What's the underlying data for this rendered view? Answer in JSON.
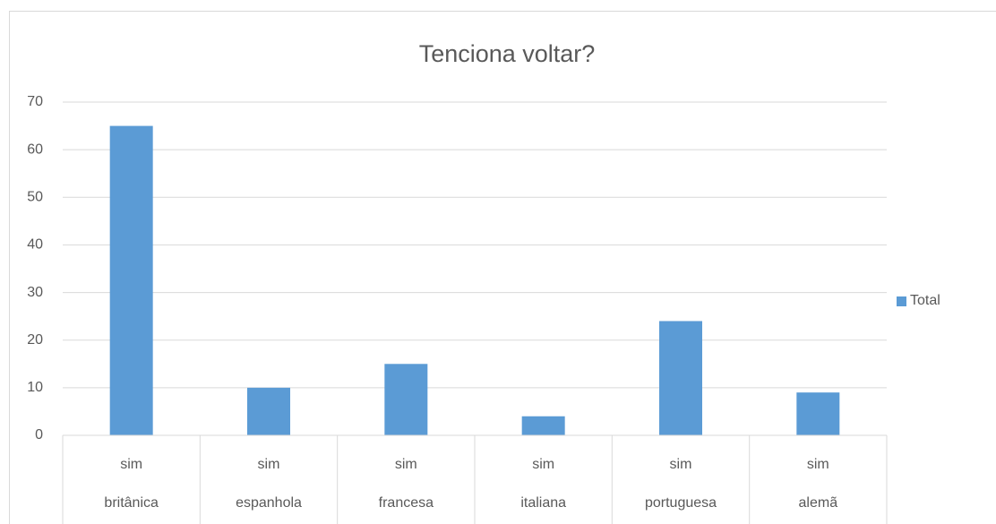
{
  "chart_data": {
    "type": "bar",
    "title": "Tenciona voltar?",
    "categories": [
      [
        "sim",
        "britânica"
      ],
      [
        "sim",
        "espanhola"
      ],
      [
        "sim",
        "francesa"
      ],
      [
        "sim",
        "italiana"
      ],
      [
        "sim",
        "portuguesa"
      ],
      [
        "sim",
        "alemã"
      ]
    ],
    "series": [
      {
        "name": "Total",
        "color": "#5b9bd5",
        "values": [
          65,
          10,
          15,
          4,
          24,
          9
        ]
      }
    ],
    "ylim": [
      0,
      70
    ],
    "yticks": [
      0,
      10,
      20,
      30,
      40,
      50,
      60,
      70
    ],
    "grid": true,
    "legend": "right"
  }
}
